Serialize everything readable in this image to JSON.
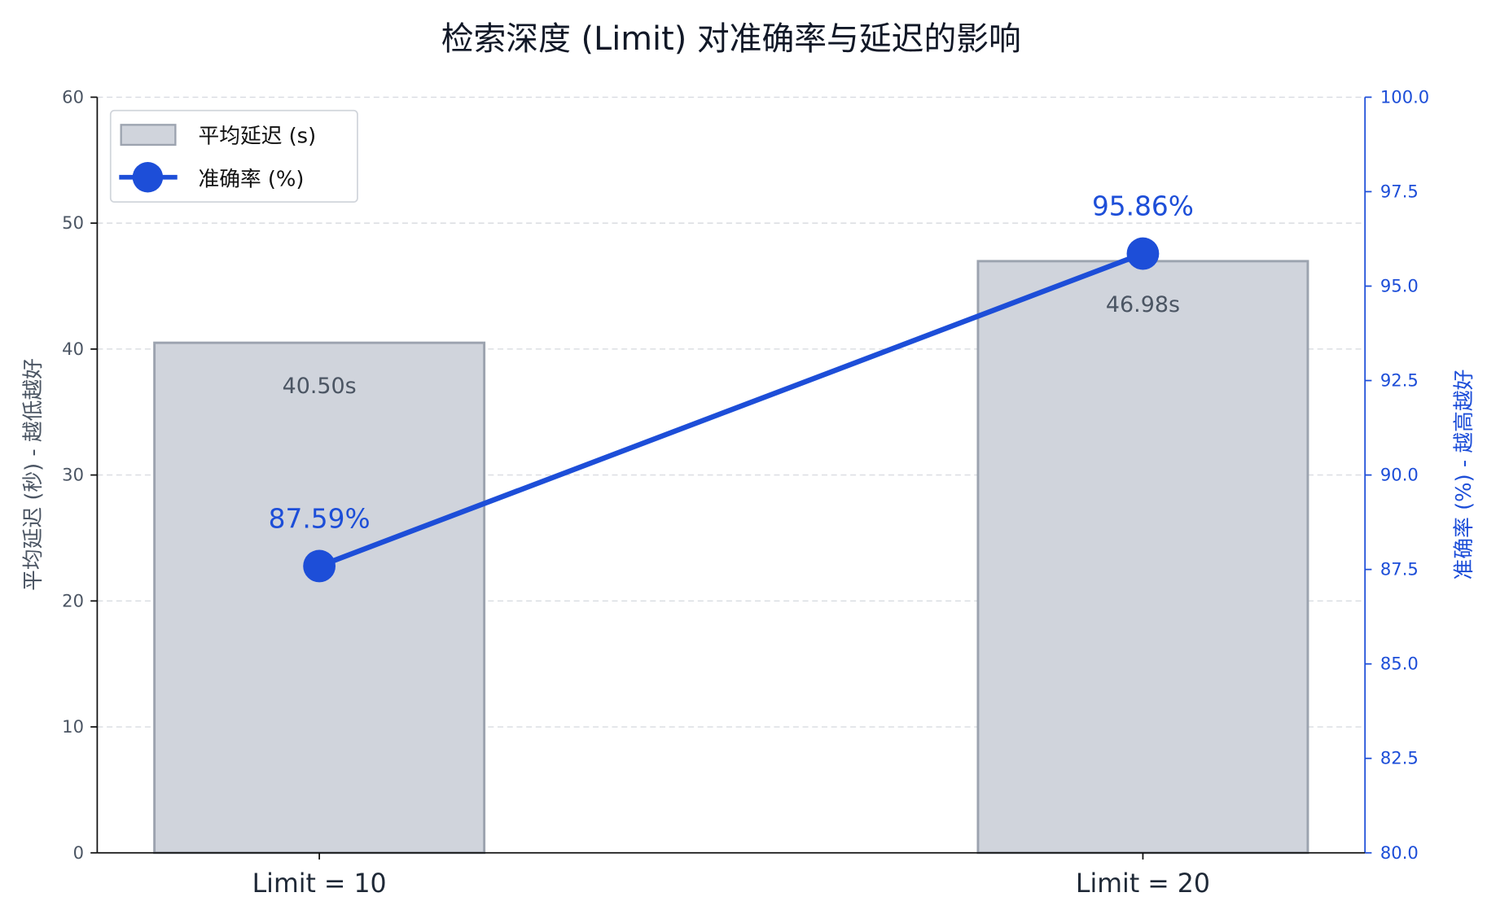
{
  "chart_data": {
    "type": "bar+line",
    "title": "检索深度 (Limit) 对准确率与延迟的影响",
    "categories": [
      "Limit = 10",
      "Limit = 20"
    ],
    "series": [
      {
        "name": "平均延迟 (s)",
        "type": "bar",
        "axis": "left",
        "values": [
          40.5,
          46.98
        ],
        "labels": [
          "40.50s",
          "46.98s"
        ],
        "color": "#d0d4dc",
        "edge_color": "#9ca3af"
      },
      {
        "name": "准确率 (%)",
        "type": "line",
        "axis": "right",
        "values": [
          87.59,
          95.86
        ],
        "labels": [
          "87.59%",
          "95.86%"
        ],
        "color": "#1d4ed8"
      }
    ],
    "ylabel": "平均延迟 (秒) - 越低越好",
    "y2label": "准确率 (%) - 越高越好",
    "ylim": [
      0,
      60
    ],
    "y2lim": [
      80,
      100
    ],
    "yticks": [
      "0",
      "10",
      "20",
      "30",
      "40",
      "50",
      "60"
    ],
    "y2ticks": [
      "80.0",
      "82.5",
      "85.0",
      "87.5",
      "90.0",
      "92.5",
      "95.0",
      "97.5",
      "100.0"
    ],
    "grid": "horizontal dashed",
    "legend": "top-left",
    "colors": {
      "left_axis_text": "#4b5563",
      "right_axis_text": "#1d4ed8",
      "title": "#111827"
    }
  }
}
